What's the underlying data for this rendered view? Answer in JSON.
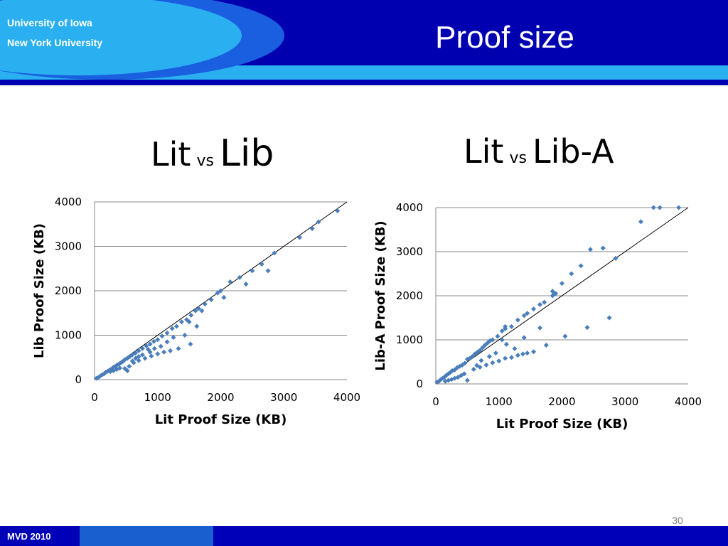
{
  "header": {
    "institution_1": "University of Iowa",
    "institution_2": "New York University",
    "title": "Proof size"
  },
  "subtitles": [
    {
      "left": "Lit",
      "vs": "vs",
      "right": "Lib"
    },
    {
      "left": "Lit",
      "vs": "vs",
      "right": "Lib-A"
    }
  ],
  "footer": {
    "label": "MVD 2010",
    "page": "30"
  },
  "colors": {
    "banner": "#0000b8",
    "accent": "#2ab0f0",
    "marker": "#4a7ebb"
  },
  "chart_data": [
    {
      "type": "scatter",
      "title": "",
      "xlabel": "Lit Proof Size (KB)",
      "ylabel": "Lib Proof Size (KB)",
      "xlim": [
        0,
        4000
      ],
      "ylim": [
        0,
        4000
      ],
      "xticks": [
        "0",
        "1000",
        "2000",
        "3000",
        "4000"
      ],
      "yticks": [
        "0",
        "1000",
        "2000",
        "3000",
        "4000"
      ],
      "grid": "horizontal",
      "diagonal": true,
      "series": [
        {
          "marker_color": "#4a7ebb",
          "points": [
            [
              30,
              30
            ],
            [
              60,
              50
            ],
            [
              90,
              80
            ],
            [
              120,
              110
            ],
            [
              150,
              130
            ],
            [
              180,
              170
            ],
            [
              210,
              190
            ],
            [
              240,
              220
            ],
            [
              270,
              240
            ],
            [
              300,
              280
            ],
            [
              330,
              300
            ],
            [
              360,
              330
            ],
            [
              390,
              350
            ],
            [
              420,
              380
            ],
            [
              450,
              410
            ],
            [
              480,
              450
            ],
            [
              520,
              480
            ],
            [
              560,
              520
            ],
            [
              600,
              560
            ],
            [
              650,
              600
            ],
            [
              700,
              650
            ],
            [
              760,
              700
            ],
            [
              820,
              760
            ],
            [
              880,
              800
            ],
            [
              940,
              860
            ],
            [
              1000,
              900
            ],
            [
              1070,
              980
            ],
            [
              1150,
              1050
            ],
            [
              1230,
              1150
            ],
            [
              1300,
              1200
            ],
            [
              1380,
              1300
            ],
            [
              1460,
              1350
            ],
            [
              1530,
              1450
            ],
            [
              1600,
              1550
            ],
            [
              1650,
              1600
            ],
            [
              1750,
              1700
            ],
            [
              1850,
              1800
            ],
            [
              1950,
              1950
            ],
            [
              2050,
              1850
            ],
            [
              2150,
              2200
            ],
            [
              2300,
              2300
            ],
            [
              2400,
              2150
            ],
            [
              2500,
              2450
            ],
            [
              2650,
              2600
            ],
            [
              2750,
              2450
            ],
            [
              2850,
              2850
            ],
            [
              3250,
              3200
            ],
            [
              3450,
              3400
            ],
            [
              3550,
              3550
            ],
            [
              3850,
              3800
            ],
            [
              2000,
              2000
            ],
            [
              1620,
              1200
            ],
            [
              1520,
              800
            ],
            [
              1330,
              700
            ],
            [
              1200,
              650
            ],
            [
              1100,
              620
            ],
            [
              1000,
              580
            ],
            [
              900,
              530
            ],
            [
              800,
              480
            ],
            [
              700,
              430
            ],
            [
              620,
              380
            ],
            [
              550,
              300
            ],
            [
              520,
              200
            ],
            [
              480,
              250
            ],
            [
              400,
              260
            ],
            [
              350,
              230
            ],
            [
              300,
              200
            ],
            [
              250,
              180
            ],
            [
              600,
              420
            ],
            [
              700,
              520
            ],
            [
              760,
              560
            ],
            [
              880,
              620
            ],
            [
              1150,
              850
            ],
            [
              1250,
              950
            ],
            [
              1430,
              1000
            ],
            [
              1500,
              1300
            ],
            [
              1700,
              1550
            ],
            [
              1050,
              750
            ],
            [
              950,
              700
            ],
            [
              850,
              680
            ],
            [
              650,
              480
            ]
          ]
        }
      ]
    },
    {
      "type": "scatter",
      "title": "",
      "xlabel": "Lit Proof Size (KB)",
      "ylabel": "Lib-A Proof Size (KB)",
      "xlim": [
        0,
        4000
      ],
      "ylim": [
        0,
        4000
      ],
      "xticks": [
        "0",
        "1000",
        "2000",
        "3000",
        "4000"
      ],
      "yticks": [
        "0",
        "1000",
        "2000",
        "3000",
        "4000"
      ],
      "grid": "horizontal",
      "diagonal": true,
      "series": [
        {
          "marker_color": "#4a7ebb",
          "points": [
            [
              20,
              40
            ],
            [
              50,
              60
            ],
            [
              80,
              100
            ],
            [
              110,
              130
            ],
            [
              140,
              160
            ],
            [
              170,
              200
            ],
            [
              200,
              230
            ],
            [
              230,
              260
            ],
            [
              260,
              300
            ],
            [
              300,
              320
            ],
            [
              340,
              370
            ],
            [
              380,
              400
            ],
            [
              420,
              430
            ],
            [
              460,
              470
            ],
            [
              500,
              560
            ],
            [
              540,
              580
            ],
            [
              580,
              620
            ],
            [
              620,
              680
            ],
            [
              660,
              720
            ],
            [
              700,
              760
            ],
            [
              740,
              820
            ],
            [
              780,
              880
            ],
            [
              820,
              930
            ],
            [
              860,
              980
            ],
            [
              900,
              1000
            ],
            [
              980,
              1080
            ],
            [
              1050,
              1200
            ],
            [
              1100,
              1250
            ],
            [
              1200,
              1300
            ],
            [
              1300,
              1450
            ],
            [
              1400,
              1550
            ],
            [
              1450,
              1600
            ],
            [
              1550,
              1700
            ],
            [
              1650,
              1800
            ],
            [
              1720,
              1850
            ],
            [
              1850,
              2000
            ],
            [
              1880,
              2050
            ],
            [
              2000,
              2280
            ],
            [
              2150,
              2500
            ],
            [
              2300,
              2680
            ],
            [
              2450,
              3050
            ],
            [
              2650,
              3080
            ],
            [
              2850,
              2850
            ],
            [
              3250,
              3680
            ],
            [
              3450,
              4000
            ],
            [
              3550,
              4000
            ],
            [
              3850,
              4000
            ],
            [
              2750,
              1500
            ],
            [
              2400,
              1280
            ],
            [
              2050,
              1080
            ],
            [
              1750,
              880
            ],
            [
              1650,
              1270
            ],
            [
              1550,
              730
            ],
            [
              1450,
              700
            ],
            [
              1380,
              680
            ],
            [
              1300,
              650
            ],
            [
              1200,
              600
            ],
            [
              1100,
              580
            ],
            [
              1000,
              520
            ],
            [
              900,
              480
            ],
            [
              800,
              430
            ],
            [
              700,
              380
            ],
            [
              600,
              330
            ],
            [
              500,
              80
            ],
            [
              450,
              230
            ],
            [
              400,
              190
            ],
            [
              350,
              150
            ],
            [
              300,
              130
            ],
            [
              250,
              100
            ],
            [
              200,
              80
            ],
            [
              150,
              60
            ],
            [
              650,
              420
            ],
            [
              720,
              530
            ],
            [
              850,
              620
            ],
            [
              950,
              700
            ],
            [
              1120,
              900
            ],
            [
              1250,
              800
            ],
            [
              1050,
              1000
            ],
            [
              1400,
              1050
            ],
            [
              1900,
              2050
            ],
            [
              1850,
              2100
            ],
            [
              1100,
              1300
            ]
          ]
        }
      ]
    }
  ]
}
